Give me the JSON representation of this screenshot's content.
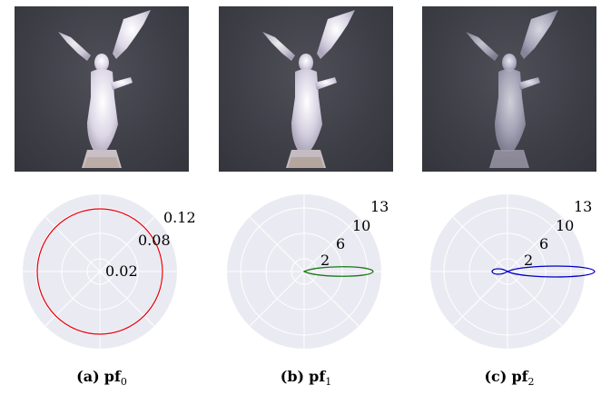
{
  "panels": [
    {
      "caption_label": "(a)",
      "caption_name": "pf",
      "caption_sub": "0",
      "ticks": [
        "0.02",
        "0.08",
        "0.12"
      ],
      "curve_color": "#e8000b",
      "curve": "circle"
    },
    {
      "caption_label": "(b)",
      "caption_name": "pf",
      "caption_sub": "1",
      "ticks": [
        "2",
        "6",
        "10",
        "13"
      ],
      "curve_color": "#1a7a1a",
      "curve": "forward-lobe"
    },
    {
      "caption_label": "(c)",
      "caption_name": "pf",
      "caption_sub": "2",
      "ticks": [
        "2",
        "6",
        "10",
        "13"
      ],
      "curve_color": "#0000c8",
      "curve": "forward-lobe-with-back-lobe"
    }
  ],
  "colors": {
    "polar_background": "#eaeaf2",
    "grid": "#ffffff"
  }
}
